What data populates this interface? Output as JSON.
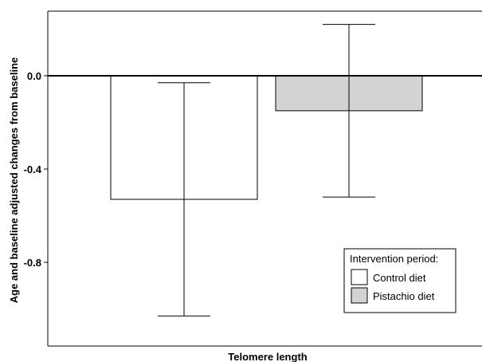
{
  "chart_data": {
    "type": "bar",
    "categories": [
      "Telomere length"
    ],
    "xlabel": "Telomere length",
    "ylabel": "Age and baseline adjusted changes from baseline",
    "ylim": [
      -1.15,
      0.28
    ],
    "yticks": [
      0.0,
      -0.4,
      -0.8
    ],
    "ytick_labels": [
      "0.0",
      "-0.4",
      "-0.8"
    ],
    "series": [
      {
        "name": "Control diet",
        "value": -0.53,
        "error_low": -1.03,
        "error_high": -0.03,
        "color": "#ffffff"
      },
      {
        "name": "Pistachio diet",
        "value": -0.15,
        "error_low": -0.52,
        "error_high": 0.22,
        "color": "#d3d3d3"
      }
    ],
    "legend": {
      "title": "Intervention period:",
      "position": "bottom-right"
    },
    "grid": false
  }
}
